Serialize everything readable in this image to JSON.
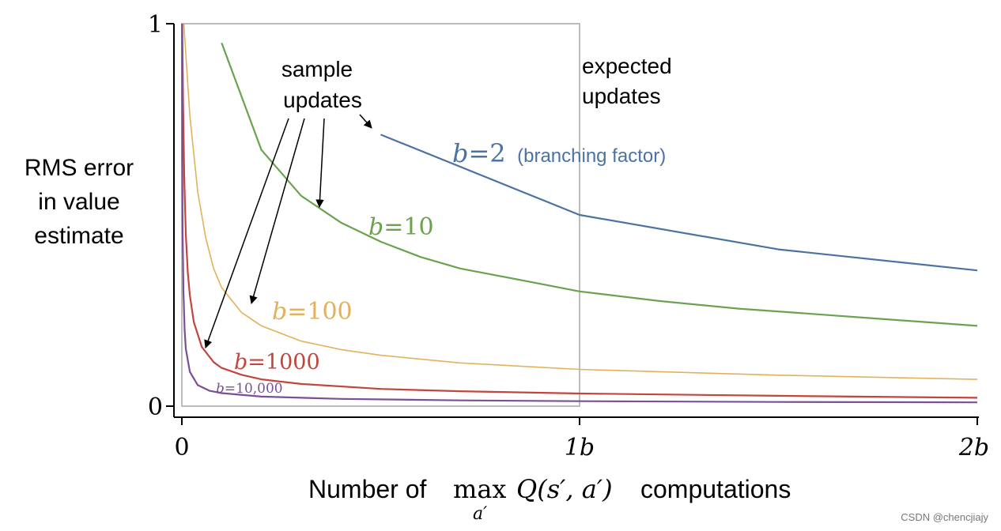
{
  "chart_data": {
    "type": "line",
    "ylabel_lines": [
      "RMS error",
      "in value",
      "estimate"
    ],
    "xlabel": {
      "prefix": "Number of",
      "op": "max",
      "op_sub": "a′",
      "expr": "Q(s′, a′)",
      "suffix": "computations"
    },
    "x_tick_labels": [
      "0",
      "1b",
      "2b"
    ],
    "y_tick_labels": [
      "0",
      "1"
    ],
    "xlim": [
      0,
      2
    ],
    "ylim": [
      0,
      1
    ],
    "annotations": {
      "sample_updates": [
        "sample",
        "updates"
      ],
      "expected_updates": [
        "expected",
        "updates"
      ]
    },
    "expected_updates_box": {
      "x": [
        0,
        1
      ],
      "y": [
        0,
        1
      ]
    },
    "series": [
      {
        "label_var": "b",
        "label_value": "2",
        "label_note": "(branching factor)",
        "color": "#4c72a4",
        "points": [
          [
            0.5,
            0.71
          ],
          [
            1.0,
            0.5
          ],
          [
            1.5,
            0.41
          ],
          [
            2.0,
            0.355
          ]
        ]
      },
      {
        "label_var": "b",
        "label_value": "10",
        "color": "#6aa24f",
        "points": [
          [
            0.1,
            0.95
          ],
          [
            0.2,
            0.67
          ],
          [
            0.3,
            0.55
          ],
          [
            0.4,
            0.48
          ],
          [
            0.5,
            0.43
          ],
          [
            0.6,
            0.39
          ],
          [
            0.7,
            0.36
          ],
          [
            0.8,
            0.34
          ],
          [
            0.9,
            0.32
          ],
          [
            1.0,
            0.3
          ],
          [
            1.2,
            0.275
          ],
          [
            1.4,
            0.255
          ],
          [
            1.6,
            0.24
          ],
          [
            1.8,
            0.225
          ],
          [
            2.0,
            0.21
          ]
        ]
      },
      {
        "label_var": "b",
        "label_value": "100",
        "color": "#e3b15a",
        "points": [
          [
            0.005,
            1.0
          ],
          [
            0.02,
            0.76
          ],
          [
            0.04,
            0.56
          ],
          [
            0.06,
            0.44
          ],
          [
            0.08,
            0.36
          ],
          [
            0.1,
            0.31
          ],
          [
            0.15,
            0.245
          ],
          [
            0.2,
            0.21
          ],
          [
            0.3,
            0.17
          ],
          [
            0.4,
            0.148
          ],
          [
            0.5,
            0.133
          ],
          [
            0.7,
            0.113
          ],
          [
            1.0,
            0.096
          ],
          [
            1.5,
            0.081
          ],
          [
            2.0,
            0.07
          ]
        ]
      },
      {
        "label_var": "b",
        "label_value": "1000",
        "color": "#c0463e",
        "points": [
          [
            0.001,
            1.0
          ],
          [
            0.003,
            0.8
          ],
          [
            0.006,
            0.6
          ],
          [
            0.01,
            0.45
          ],
          [
            0.015,
            0.35
          ],
          [
            0.02,
            0.29
          ],
          [
            0.03,
            0.22
          ],
          [
            0.05,
            0.155
          ],
          [
            0.08,
            0.115
          ],
          [
            0.1,
            0.1
          ],
          [
            0.15,
            0.082
          ],
          [
            0.2,
            0.07
          ],
          [
            0.3,
            0.058
          ],
          [
            0.5,
            0.045
          ],
          [
            0.7,
            0.039
          ],
          [
            1.0,
            0.033
          ],
          [
            1.5,
            0.027
          ],
          [
            2.0,
            0.022
          ]
        ]
      },
      {
        "label_var": "b",
        "label_value": "10,000",
        "color": "#7b4f96",
        "points": [
          [
            0.0003,
            1.0
          ],
          [
            0.001,
            0.65
          ],
          [
            0.002,
            0.45
          ],
          [
            0.004,
            0.3
          ],
          [
            0.007,
            0.2
          ],
          [
            0.01,
            0.15
          ],
          [
            0.02,
            0.09
          ],
          [
            0.04,
            0.055
          ],
          [
            0.07,
            0.04
          ],
          [
            0.1,
            0.034
          ],
          [
            0.2,
            0.025
          ],
          [
            0.4,
            0.019
          ],
          [
            0.7,
            0.015
          ],
          [
            1.0,
            0.013
          ],
          [
            1.5,
            0.011
          ],
          [
            2.0,
            0.01
          ]
        ]
      }
    ]
  }
}
